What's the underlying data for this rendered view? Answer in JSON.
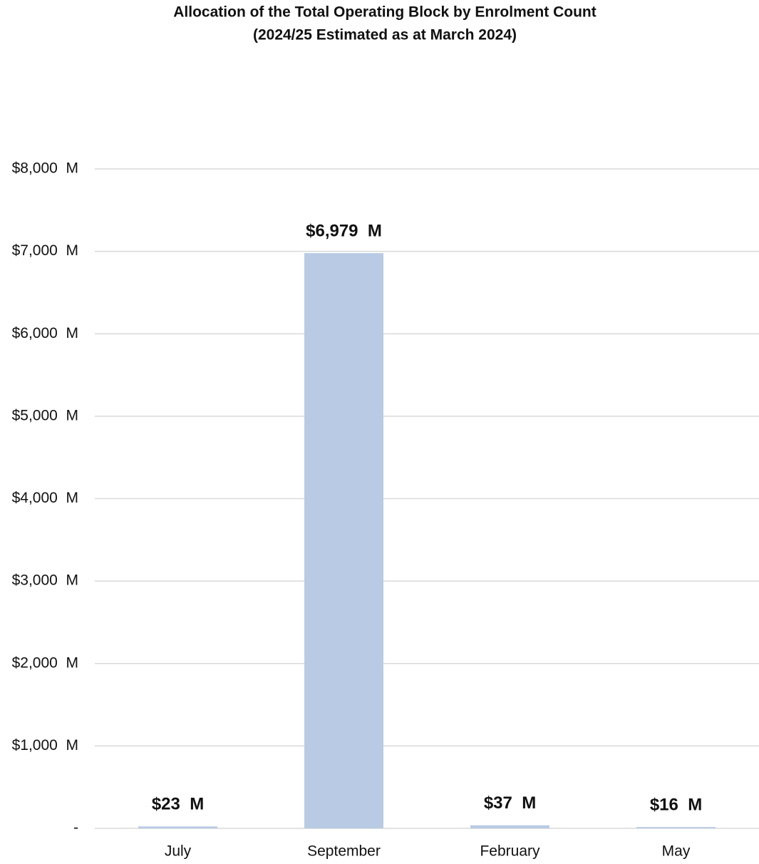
{
  "chart_data": {
    "type": "bar",
    "title": "Allocation of the Total Operating Block by Enrolment Count",
    "subtitle": "(2024/25 Estimated as at March 2024)",
    "categories": [
      "July",
      "September",
      "February",
      "May"
    ],
    "values": [
      23,
      6979,
      37,
      16
    ],
    "value_labels": [
      "$23  M",
      "$6,979  M",
      "$37  M",
      "$16  M"
    ],
    "color": "#b9cbe4",
    "ylim": [
      0,
      8000
    ],
    "yticks": [
      {
        "value": 0,
        "label": "-"
      },
      {
        "value": 1000,
        "label": "$1,000  M"
      },
      {
        "value": 2000,
        "label": "$2,000  M"
      },
      {
        "value": 3000,
        "label": "$3,000  M"
      },
      {
        "value": 4000,
        "label": "$4,000  M"
      },
      {
        "value": 5000,
        "label": "$5,000  M"
      },
      {
        "value": 6000,
        "label": "$6,000  M"
      },
      {
        "value": 7000,
        "label": "$7,000  M"
      },
      {
        "value": 8000,
        "label": "$8,000  M"
      }
    ],
    "grid": true
  }
}
